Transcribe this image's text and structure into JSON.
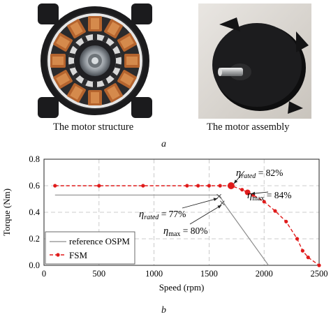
{
  "figure": {
    "caption_left": "The motor structure",
    "caption_right": "The motor assembly",
    "label_a": "a",
    "label_b": "b"
  },
  "chart_data": {
    "type": "line",
    "xlabel": "Speed (rpm)",
    "ylabel": "Torque (Nm)",
    "xlim": [
      0,
      2500
    ],
    "ylim": [
      0,
      0.8
    ],
    "xticks": [
      "0",
      "500",
      "1000",
      "1500",
      "2000",
      "2500"
    ],
    "yticks": [
      "0.0",
      "0.2",
      "0.4",
      "0.6",
      "0.8"
    ],
    "grid": "dashed",
    "legend_position": "bottom-left",
    "series": [
      {
        "name": "reference  OSPM",
        "color": "#8c8c8c",
        "marker": "none",
        "x": [
          100,
          1580,
          1600,
          1650,
          2040
        ],
        "y": [
          0.53,
          0.53,
          0.52,
          0.45,
          0.0
        ]
      },
      {
        "name": "FSM",
        "color": "#e01b1b",
        "marker": "dot",
        "x": [
          100,
          500,
          900,
          1300,
          1400,
          1500,
          1600,
          1700,
          1800,
          1850,
          1900,
          2000,
          2100,
          2200,
          2300,
          2350,
          2400,
          2500
        ],
        "y": [
          0.6,
          0.6,
          0.6,
          0.6,
          0.6,
          0.6,
          0.6,
          0.6,
          0.57,
          0.55,
          0.53,
          0.48,
          0.41,
          0.33,
          0.2,
          0.11,
          0.06,
          0.0
        ]
      }
    ],
    "annotations": [
      {
        "sym": "η",
        "sub": "rated",
        "val": "= 82%",
        "x": 1700,
        "y": 0.6
      },
      {
        "sym": "η",
        "sub": "max",
        "val": "= 84%",
        "x": 1850,
        "y": 0.55
      },
      {
        "sym": "η",
        "sub": "rated",
        "val": "= 77%",
        "x": 1590,
        "y": 0.52
      },
      {
        "sym": "η",
        "sub": "max",
        "val": "= 80%",
        "x": 1620,
        "y": 0.47
      }
    ]
  }
}
